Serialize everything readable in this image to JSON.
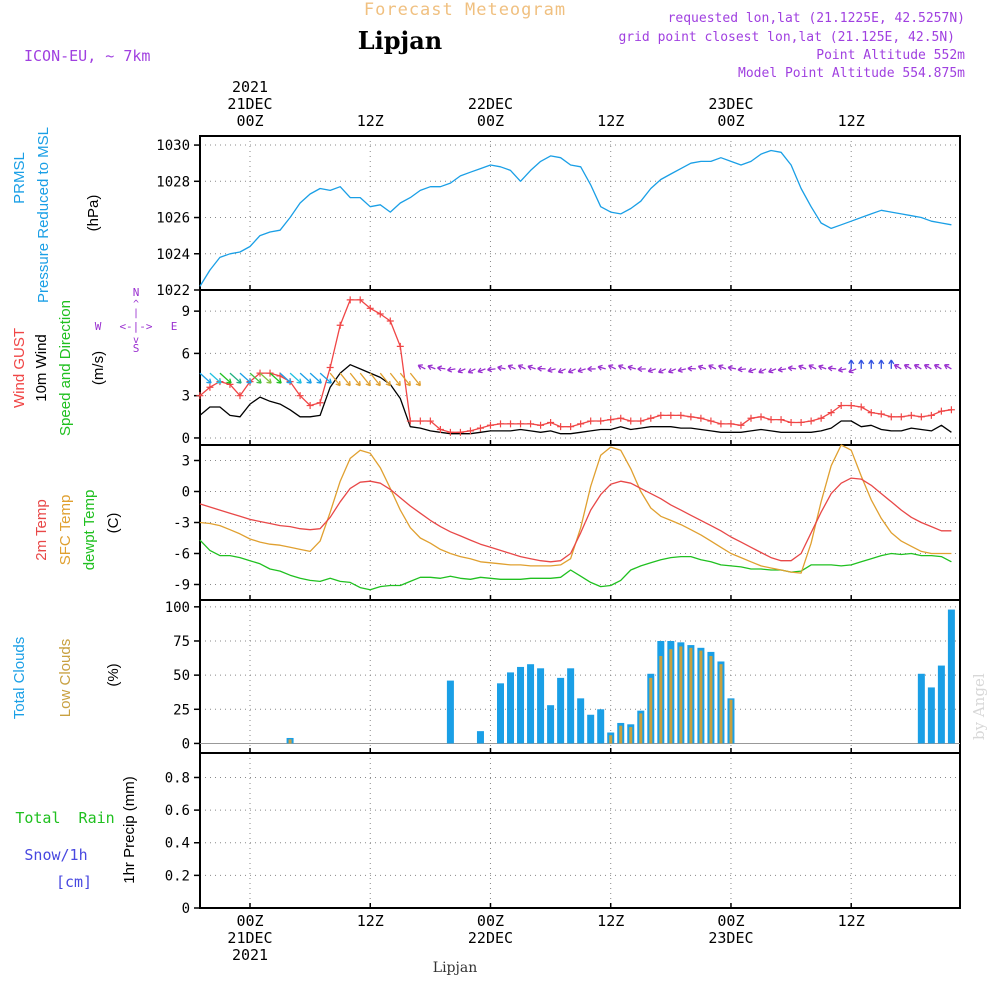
{
  "header": {
    "product": "Forecast Meteogram",
    "location": "Lipjan",
    "model": "ICON-EU, ~ 7km",
    "requested": "requested lon,lat (21.1225E, 42.5257N)",
    "grid_point": "grid point closest lon,lat (21.125E, 42.5N)",
    "point_altitude": "Point Altitude 552m",
    "model_altitude": "Model Point Altitude 554.875m",
    "footer_location": "Lipjan",
    "watermark": "by Angel"
  },
  "time_axis": {
    "top_labels": [
      {
        "t": 0,
        "lines": [
          "2021",
          "21DEC",
          "00Z"
        ]
      },
      {
        "t": 12,
        "lines": [
          "12Z"
        ]
      },
      {
        "t": 24,
        "lines": [
          "22DEC",
          "00Z"
        ]
      },
      {
        "t": 36,
        "lines": [
          "12Z"
        ]
      },
      {
        "t": 48,
        "lines": [
          "23DEC",
          "00Z"
        ]
      },
      {
        "t": 60,
        "lines": [
          "12Z"
        ]
      }
    ],
    "bottom_labels": [
      {
        "t": 0,
        "lines": [
          "00Z",
          "21DEC",
          "2021"
        ]
      },
      {
        "t": 12,
        "lines": [
          "12Z"
        ]
      },
      {
        "t": 24,
        "lines": [
          "00Z",
          "22DEC"
        ]
      },
      {
        "t": 36,
        "lines": [
          "12Z"
        ]
      },
      {
        "t": 48,
        "lines": [
          "00Z",
          "23DEC"
        ]
      },
      {
        "t": 60,
        "lines": [
          "12Z"
        ]
      }
    ]
  },
  "colors": {
    "pressure": "#1a9fe6",
    "gust": "#f04646",
    "wind": "#000000",
    "direction": "#9a30d0",
    "temp2m": "#e84848",
    "sfc": "#e0a030",
    "dewpt": "#20c020",
    "total_clouds": "#1a9fe6",
    "low_clouds": "#c8a040",
    "rain": "#20c020",
    "snow": "#4848e0",
    "header_title": "#f0c080",
    "header_info": "#a040e0"
  },
  "panels": {
    "pressure": {
      "labels": [
        {
          "text": "PRMSL",
          "color": "#1a9fe6"
        },
        {
          "text": "Pressure Reduced to MSL",
          "color": "#1a9fe6"
        },
        {
          "text": "(hPa)",
          "color": "#000000"
        }
      ],
      "ticks": [
        "1022",
        "1024",
        "1026",
        "1028",
        "1030"
      ]
    },
    "wind": {
      "labels": [
        {
          "text": "Wind GUST",
          "color": "#f04646"
        },
        {
          "text": "10m Wind",
          "color": "#000000"
        },
        {
          "text": "Speed and Direction",
          "color": "#20c020"
        },
        {
          "text": "(m/s)",
          "color": "#000000"
        }
      ],
      "compass": {
        "n": "N",
        "s": "S",
        "w": "W",
        "e": "E",
        "ns": "^\n|\nv",
        "we": "<-|->"
      },
      "ticks": [
        "0",
        "3",
        "6",
        "9"
      ]
    },
    "temperature": {
      "labels": [
        {
          "text": "2m Temp",
          "color": "#e84848"
        },
        {
          "text": "SFC Temp",
          "color": "#e0a030"
        },
        {
          "text": "dewpt Temp",
          "color": "#20c020"
        },
        {
          "text": "(C)",
          "color": "#000000"
        }
      ],
      "ticks": [
        "-9",
        "-6",
        "-3",
        "0",
        "3"
      ]
    },
    "clouds": {
      "labels": [
        {
          "text": "Total Clouds",
          "color": "#1a9fe6"
        },
        {
          "text": "Low Clouds",
          "color": "#c8a040"
        },
        {
          "text": "(%)",
          "color": "#000000"
        }
      ],
      "ticks": [
        "0",
        "25",
        "50",
        "75",
        "100"
      ]
    },
    "precip": {
      "labels": [
        {
          "text": "Total  Rain",
          "color": "#20c020"
        },
        {
          "text": "Snow/1h",
          "color": "#4848e0"
        },
        {
          "text": "[cm]",
          "color": "#4848e0"
        },
        {
          "text": "1hr Precip (mm)",
          "color": "#000000"
        }
      ],
      "ticks": [
        "0",
        "0.2",
        "0.4",
        "0.6",
        "0.8"
      ]
    }
  },
  "chart_data": [
    {
      "type": "line",
      "ylabel": "Pressure Reduced to MSL (hPa)",
      "ylim": [
        1022,
        1030.5
      ],
      "x": [
        -5,
        -4,
        -3,
        -2,
        -1,
        0,
        1,
        2,
        3,
        4,
        5,
        6,
        7,
        8,
        9,
        10,
        11,
        12,
        13,
        14,
        15,
        16,
        17,
        18,
        19,
        20,
        21,
        22,
        23,
        24,
        25,
        26,
        27,
        28,
        29,
        30,
        31,
        32,
        33,
        34,
        35,
        36,
        37,
        38,
        39,
        40,
        41,
        42,
        43,
        44,
        45,
        46,
        47,
        48,
        49,
        50,
        51,
        52,
        53,
        54,
        55,
        56,
        57,
        58,
        59,
        60,
        61,
        62,
        63,
        64,
        65,
        66,
        67,
        68,
        69,
        70
      ],
      "series": [
        {
          "name": "PRMSL",
          "values": [
            1022.2,
            1023.1,
            1023.8,
            1024.0,
            1024.1,
            1024.4,
            1025.0,
            1025.2,
            1025.3,
            1026.0,
            1026.8,
            1027.3,
            1027.6,
            1027.5,
            1027.7,
            1027.1,
            1027.1,
            1026.6,
            1026.7,
            1026.3,
            1026.8,
            1027.1,
            1027.5,
            1027.7,
            1027.7,
            1027.9,
            1028.3,
            1028.5,
            1028.7,
            1028.9,
            1028.8,
            1028.6,
            1028.0,
            1028.6,
            1029.1,
            1029.4,
            1029.3,
            1028.9,
            1028.8,
            1027.8,
            1026.6,
            1026.3,
            1026.2,
            1026.5,
            1026.9,
            1027.6,
            1028.1,
            1028.4,
            1028.7,
            1029.0,
            1029.1,
            1029.1,
            1029.3,
            1029.1,
            1028.9,
            1029.1,
            1029.5,
            1029.7,
            1029.6,
            1028.9,
            1027.6,
            1026.6,
            1025.7,
            1025.4,
            1025.6,
            1025.8,
            1026.0,
            1026.2,
            1026.4,
            1026.3,
            1026.2,
            1026.1,
            1026.0,
            1025.8,
            1025.7,
            1025.6
          ]
        }
      ]
    },
    {
      "type": "line",
      "ylabel": "10m Wind Speed and Direction (m/s)",
      "ylim": [
        -0.5,
        10.5
      ],
      "x": [
        -5,
        -4,
        -3,
        -2,
        -1,
        0,
        1,
        2,
        3,
        4,
        5,
        6,
        7,
        8,
        9,
        10,
        11,
        12,
        13,
        14,
        15,
        16,
        17,
        18,
        19,
        20,
        21,
        22,
        23,
        24,
        25,
        26,
        27,
        28,
        29,
        30,
        31,
        32,
        33,
        34,
        35,
        36,
        37,
        38,
        39,
        40,
        41,
        42,
        43,
        44,
        45,
        46,
        47,
        48,
        49,
        50,
        51,
        52,
        53,
        54,
        55,
        56,
        57,
        58,
        59,
        60,
        61,
        62,
        63,
        64,
        65,
        66,
        67,
        68,
        69,
        70
      ],
      "series": [
        {
          "name": "Wind GUST",
          "values": [
            3.0,
            3.6,
            4.0,
            3.8,
            3.0,
            4.0,
            4.6,
            4.6,
            4.4,
            4.0,
            3.0,
            2.3,
            2.5,
            5.0,
            8.0,
            9.8,
            9.8,
            9.2,
            8.8,
            8.3,
            6.5,
            1.2,
            1.2,
            1.2,
            0.6,
            0.4,
            0.4,
            0.5,
            0.7,
            0.9,
            1.0,
            1.0,
            1.0,
            1.0,
            0.9,
            1.1,
            0.8,
            0.8,
            1.0,
            1.2,
            1.2,
            1.3,
            1.4,
            1.2,
            1.2,
            1.4,
            1.6,
            1.6,
            1.6,
            1.5,
            1.4,
            1.2,
            1.0,
            1.0,
            0.9,
            1.4,
            1.5,
            1.3,
            1.3,
            1.1,
            1.1,
            1.2,
            1.4,
            1.8,
            2.3,
            2.3,
            2.2,
            1.8,
            1.7,
            1.5,
            1.5,
            1.6,
            1.5,
            1.6,
            1.9,
            2.0
          ]
        },
        {
          "name": "10m Wind",
          "values": [
            1.6,
            2.2,
            2.2,
            1.6,
            1.5,
            2.4,
            2.9,
            2.6,
            2.4,
            2.0,
            1.5,
            1.5,
            1.6,
            3.6,
            4.6,
            5.2,
            4.9,
            4.6,
            4.3,
            3.8,
            2.8,
            0.8,
            0.7,
            0.5,
            0.4,
            0.3,
            0.3,
            0.3,
            0.4,
            0.5,
            0.5,
            0.5,
            0.6,
            0.5,
            0.4,
            0.5,
            0.3,
            0.3,
            0.4,
            0.5,
            0.6,
            0.6,
            0.8,
            0.6,
            0.7,
            0.8,
            0.8,
            0.8,
            0.7,
            0.7,
            0.6,
            0.5,
            0.4,
            0.4,
            0.4,
            0.5,
            0.6,
            0.5,
            0.4,
            0.4,
            0.4,
            0.4,
            0.5,
            0.7,
            1.2,
            1.2,
            0.8,
            0.9,
            0.6,
            0.5,
            0.5,
            0.7,
            0.6,
            0.5,
            0.9,
            0.4
          ]
        }
      ]
    },
    {
      "type": "line",
      "ylabel": "Temperature (C)",
      "ylim": [
        -10.5,
        4.5
      ],
      "x": [
        -5,
        -4,
        -3,
        -2,
        -1,
        0,
        1,
        2,
        3,
        4,
        5,
        6,
        7,
        8,
        9,
        10,
        11,
        12,
        13,
        14,
        15,
        16,
        17,
        18,
        19,
        20,
        21,
        22,
        23,
        24,
        25,
        26,
        27,
        28,
        29,
        30,
        31,
        32,
        33,
        34,
        35,
        36,
        37,
        38,
        39,
        40,
        41,
        42,
        43,
        44,
        45,
        46,
        47,
        48,
        49,
        50,
        51,
        52,
        53,
        54,
        55,
        56,
        57,
        58,
        59,
        60,
        61,
        62,
        63,
        64,
        65,
        66,
        67,
        68,
        69,
        70
      ],
      "series": [
        {
          "name": "2m Temp",
          "values": [
            -1.2,
            -1.5,
            -1.8,
            -2.1,
            -2.4,
            -2.7,
            -2.9,
            -3.1,
            -3.3,
            -3.4,
            -3.6,
            -3.7,
            -3.6,
            -2.5,
            -1.0,
            0.3,
            0.9,
            1.0,
            0.8,
            0.2,
            -0.6,
            -1.4,
            -2.1,
            -2.8,
            -3.4,
            -3.9,
            -4.3,
            -4.7,
            -5.1,
            -5.4,
            -5.7,
            -6.0,
            -6.3,
            -6.5,
            -6.7,
            -6.8,
            -6.7,
            -6.0,
            -4.0,
            -1.8,
            -0.3,
            0.7,
            1.0,
            0.8,
            0.3,
            -0.2,
            -0.7,
            -1.3,
            -1.8,
            -2.3,
            -2.8,
            -3.3,
            -3.8,
            -4.4,
            -4.9,
            -5.4,
            -5.9,
            -6.4,
            -6.7,
            -6.7,
            -6.0,
            -4.0,
            -2.0,
            -0.2,
            0.8,
            1.3,
            1.2,
            0.6,
            -0.2,
            -1.0,
            -1.8,
            -2.5,
            -3.0,
            -3.4,
            -3.8,
            -3.8
          ]
        },
        {
          "name": "SFC Temp",
          "values": [
            -3.0,
            -3.1,
            -3.3,
            -3.7,
            -4.1,
            -4.6,
            -4.9,
            -5.1,
            -5.2,
            -5.4,
            -5.6,
            -5.8,
            -4.8,
            -2.0,
            1.0,
            3.2,
            4.0,
            3.7,
            2.3,
            0.3,
            -1.8,
            -3.5,
            -4.5,
            -5.0,
            -5.6,
            -6.0,
            -6.3,
            -6.5,
            -6.8,
            -6.9,
            -7.0,
            -7.1,
            -7.1,
            -7.2,
            -7.2,
            -7.2,
            -7.1,
            -6.5,
            -3.5,
            0.5,
            3.5,
            4.3,
            4.0,
            2.2,
            0.0,
            -1.6,
            -2.4,
            -2.8,
            -3.2,
            -3.7,
            -4.2,
            -4.8,
            -5.4,
            -6.0,
            -6.4,
            -6.8,
            -7.2,
            -7.4,
            -7.6,
            -7.8,
            -7.9,
            -5.0,
            -1.0,
            2.5,
            4.5,
            4.0,
            1.5,
            -0.8,
            -2.6,
            -4.0,
            -4.8,
            -5.3,
            -5.8,
            -6.0,
            -6.0,
            -6.0
          ]
        },
        {
          "name": "dewpt Temp",
          "values": [
            -4.7,
            -5.7,
            -6.2,
            -6.2,
            -6.4,
            -6.7,
            -7.0,
            -7.5,
            -7.7,
            -8.1,
            -8.4,
            -8.6,
            -8.7,
            -8.4,
            -8.7,
            -8.8,
            -9.3,
            -9.5,
            -9.2,
            -9.1,
            -9.1,
            -8.7,
            -8.3,
            -8.3,
            -8.4,
            -8.2,
            -8.4,
            -8.5,
            -8.3,
            -8.4,
            -8.5,
            -8.5,
            -8.5,
            -8.4,
            -8.4,
            -8.4,
            -8.3,
            -7.6,
            -8.2,
            -8.8,
            -9.2,
            -9.1,
            -8.6,
            -7.6,
            -7.2,
            -6.9,
            -6.6,
            -6.4,
            -6.3,
            -6.3,
            -6.6,
            -6.8,
            -7.1,
            -7.2,
            -7.3,
            -7.5,
            -7.5,
            -7.6,
            -7.6,
            -7.8,
            -7.7,
            -7.1,
            -7.1,
            -7.1,
            -7.2,
            -7.1,
            -6.8,
            -6.5,
            -6.2,
            -6.0,
            -6.1,
            -6.0,
            -6.2,
            -6.2,
            -6.3,
            -6.8
          ]
        }
      ]
    },
    {
      "type": "bar",
      "ylabel": "Clouds (%)",
      "ylim": [
        -7,
        105
      ],
      "x": [
        -5,
        -4,
        -3,
        -2,
        -1,
        0,
        1,
        2,
        3,
        4,
        5,
        6,
        7,
        8,
        9,
        10,
        11,
        12,
        13,
        14,
        15,
        16,
        17,
        18,
        19,
        20,
        21,
        22,
        23,
        24,
        25,
        26,
        27,
        28,
        29,
        30,
        31,
        32,
        33,
        34,
        35,
        36,
        37,
        38,
        39,
        40,
        41,
        42,
        43,
        44,
        45,
        46,
        47,
        48,
        49,
        50,
        51,
        52,
        53,
        54,
        55,
        56,
        57,
        58,
        59,
        60,
        61,
        62,
        63,
        64,
        65,
        66,
        67,
        68,
        69,
        70
      ],
      "series": [
        {
          "name": "Total Clouds",
          "values": [
            0,
            0,
            0,
            0,
            0,
            0,
            0,
            0,
            0,
            4,
            0,
            0,
            0,
            0,
            0,
            0,
            0,
            0,
            0,
            0,
            0,
            0,
            0,
            0,
            0,
            46,
            0,
            0,
            9,
            0,
            44,
            52,
            56,
            58,
            55,
            28,
            48,
            55,
            33,
            21,
            25,
            8,
            15,
            14,
            24,
            51,
            75,
            75,
            74,
            72,
            70,
            67,
            60,
            33,
            0,
            0,
            0,
            0,
            0,
            0,
            0,
            0,
            0,
            0,
            0,
            0,
            0,
            0,
            0,
            0,
            0,
            0,
            51,
            41,
            57,
            98
          ]
        },
        {
          "name": "Low Clouds",
          "values": [
            0,
            0,
            0,
            0,
            0,
            0,
            0,
            0,
            0,
            3,
            0,
            0,
            0,
            0,
            0,
            0,
            0,
            0,
            0,
            0,
            0,
            0,
            0,
            0,
            0,
            0,
            0,
            0,
            0,
            0,
            0,
            0,
            0,
            0,
            0,
            0,
            0,
            0,
            0,
            0,
            0,
            6,
            13,
            12,
            22,
            48,
            64,
            69,
            71,
            70,
            68,
            64,
            58,
            32,
            0,
            0,
            0,
            0,
            0,
            0,
            0,
            0,
            0,
            0,
            0,
            0,
            0,
            0,
            0,
            0,
            0,
            0,
            0,
            0,
            0,
            0
          ]
        }
      ]
    },
    {
      "type": "bar",
      "ylabel": "1hr Precip (mm)",
      "ylim": [
        0,
        0.95
      ],
      "x": [],
      "series": []
    }
  ]
}
